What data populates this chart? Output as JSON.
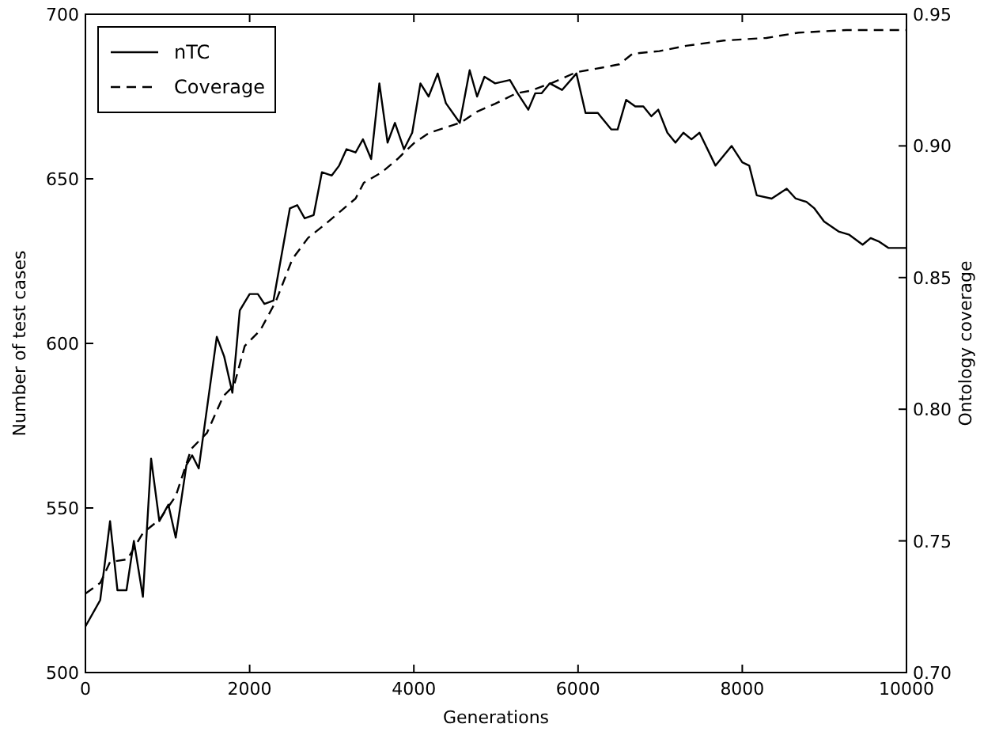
{
  "chart_data": {
    "type": "line",
    "xlabel": "Generations",
    "ylabel": "Number of test cases",
    "y2label": "Ontology coverage",
    "xlim": [
      0,
      10000
    ],
    "xticks": [
      0,
      2000,
      4000,
      6000,
      8000,
      10000
    ],
    "ylim": [
      500,
      700
    ],
    "yticks": [
      500,
      550,
      600,
      650,
      700
    ],
    "y2lim": [
      0.7,
      0.95
    ],
    "y2ticks": [
      {
        "value": 0.7,
        "label": "0.70"
      },
      {
        "value": 0.75,
        "label": "0.75"
      },
      {
        "value": 0.8,
        "label": "0.80"
      },
      {
        "value": 0.85,
        "label": "0.85"
      },
      {
        "value": 0.9,
        "label": "0.90"
      },
      {
        "value": 0.95,
        "label": "0.95"
      }
    ],
    "legend": "top left",
    "grid": false,
    "series": [
      {
        "name": "nTC",
        "color": "#000000",
        "line_style": "solid",
        "x": [
          0,
          180,
          300,
          390,
          500,
          590,
          700,
          800,
          900,
          1010,
          1100,
          1230,
          1300,
          1380,
          1600,
          1690,
          1790,
          1880,
          2000,
          2100,
          2180,
          2290,
          2490,
          2580,
          2670,
          2780,
          2880,
          3000,
          3090,
          3180,
          3290,
          3380,
          3480,
          3580,
          3680,
          3770,
          3880,
          3980,
          4080,
          4180,
          4290,
          4390,
          4560,
          4680,
          4770,
          4860,
          4990,
          5170,
          5264,
          5394,
          5479,
          5557,
          5655,
          5805,
          5980,
          6091,
          6241,
          6404,
          6482,
          6586,
          6697,
          6795,
          6893,
          6977,
          7088,
          7186,
          7283,
          7381,
          7479,
          7674,
          7870,
          8000,
          8085,
          8176,
          8358,
          8541,
          8651,
          8782,
          8879,
          8997,
          9173,
          9303,
          9466,
          9564,
          9661,
          9779,
          10000
        ],
        "values": [
          514,
          522,
          546,
          525,
          525,
          540,
          523,
          565,
          546,
          551,
          541,
          563,
          566,
          562,
          602,
          596,
          585,
          610,
          615,
          615,
          612,
          613,
          641,
          642,
          638,
          639,
          652,
          651,
          654,
          659,
          658,
          662,
          656,
          679,
          661,
          667,
          659,
          664,
          679,
          675,
          682,
          673,
          667,
          683,
          675,
          681,
          679,
          680,
          676,
          671,
          676,
          676,
          679,
          677,
          682,
          670,
          670,
          665,
          665,
          674,
          672,
          672,
          669,
          671,
          664,
          661,
          664,
          662,
          664,
          654,
          660,
          655,
          654,
          645,
          644,
          647,
          644,
          643,
          641,
          637,
          634,
          633,
          630,
          632,
          631,
          629,
          629
        ]
      },
      {
        "name": "Coverage",
        "color": "#000000",
        "line_style": "dashed",
        "axis": "y2",
        "x": [
          0,
          180,
          300,
          510,
          700,
          900,
          1100,
          1290,
          1480,
          1680,
          1810,
          1940,
          2130,
          2320,
          2520,
          2710,
          2910,
          3100,
          3290,
          3390,
          3610,
          3800,
          4000,
          4190,
          4390,
          4580,
          4770,
          4990,
          5250,
          5427,
          5687,
          5980,
          6339,
          6502,
          6664,
          6990,
          7316,
          7772,
          8293,
          8684,
          9270,
          10000
        ],
        "values": [
          0.73,
          0.734,
          0.742,
          0.743,
          0.753,
          0.758,
          0.767,
          0.785,
          0.791,
          0.805,
          0.809,
          0.824,
          0.83,
          0.841,
          0.857,
          0.865,
          0.87,
          0.875,
          0.88,
          0.886,
          0.89,
          0.895,
          0.901,
          0.905,
          0.907,
          0.909,
          0.913,
          0.916,
          0.92,
          0.921,
          0.924,
          0.928,
          0.93,
          0.931,
          0.935,
          0.936,
          0.938,
          0.94,
          0.941,
          0.943,
          0.944,
          0.944
        ]
      }
    ]
  }
}
